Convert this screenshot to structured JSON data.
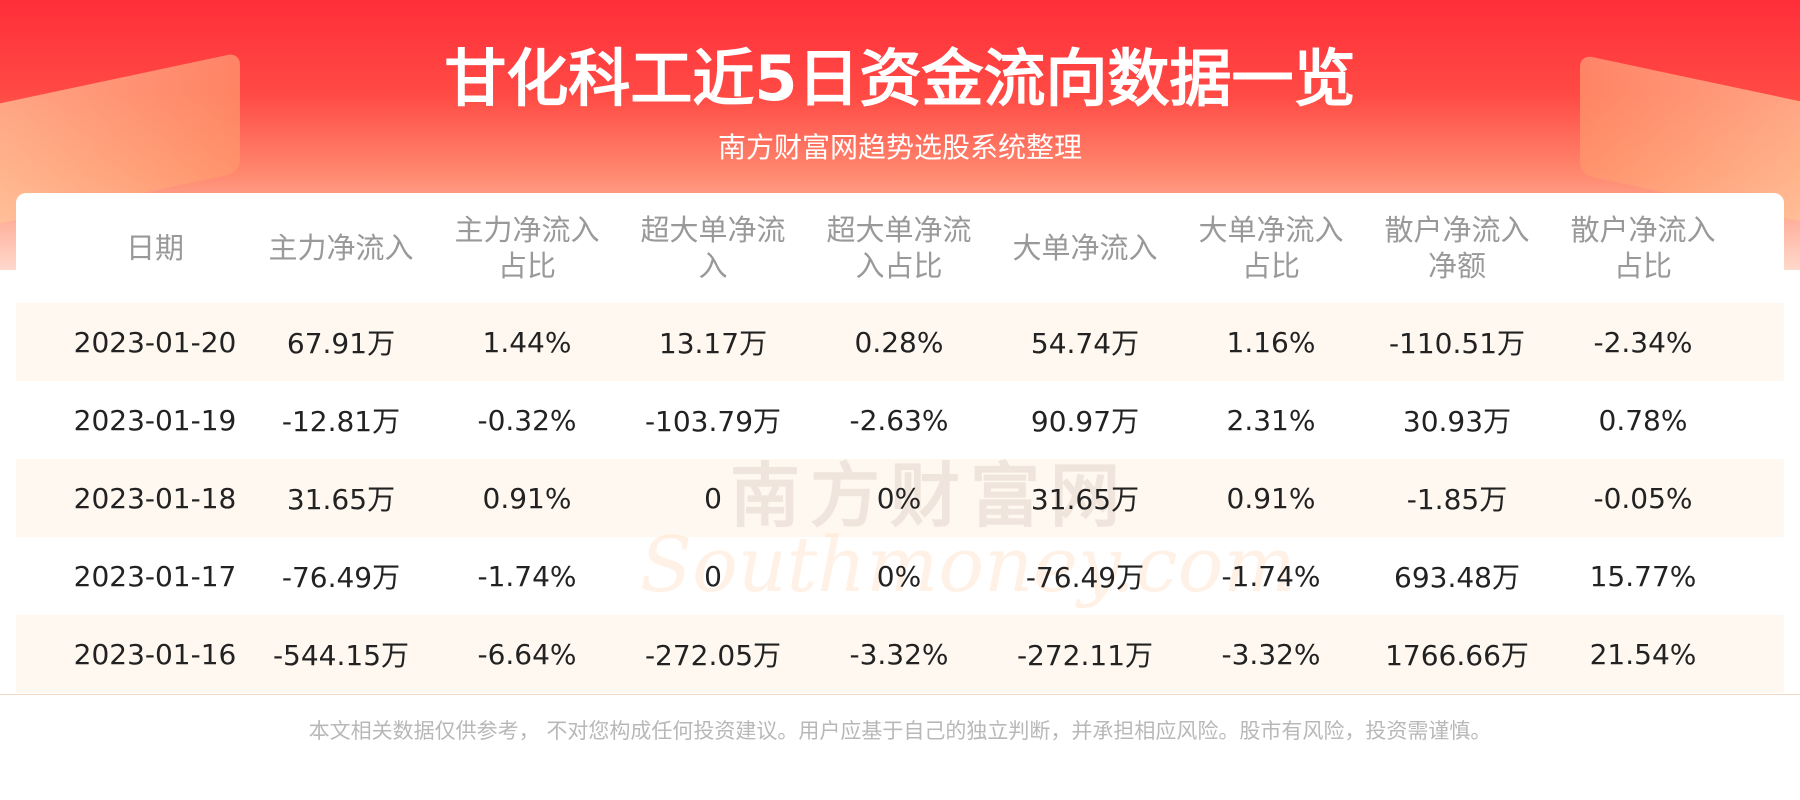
{
  "header": {
    "title": "甘化科工近5日资金流向数据一览",
    "subtitle": "南方财富网趋势选股系统整理"
  },
  "table": {
    "columns": [
      "日期",
      "主力净流入",
      "主力净流入占比",
      "超大单净流入",
      "超大单净流入占比",
      "大单净流入",
      "大单净流入占比",
      "散户净流入净额",
      "散户净流入占比"
    ],
    "rows": [
      [
        "2023-01-20",
        "67.91万",
        "1.44%",
        "13.17万",
        "0.28%",
        "54.74万",
        "1.16%",
        "-110.51万",
        "-2.34%"
      ],
      [
        "2023-01-19",
        "-12.81万",
        "-0.32%",
        "-103.79万",
        "-2.63%",
        "90.97万",
        "2.31%",
        "30.93万",
        "0.78%"
      ],
      [
        "2023-01-18",
        "31.65万",
        "0.91%",
        "0",
        "0%",
        "31.65万",
        "0.91%",
        "-1.85万",
        "-0.05%"
      ],
      [
        "2023-01-17",
        "-76.49万",
        "-1.74%",
        "0",
        "0%",
        "-76.49万",
        "-1.74%",
        "693.48万",
        "15.77%"
      ],
      [
        "2023-01-16",
        "-544.15万",
        "-6.64%",
        "-272.05万",
        "-3.32%",
        "-272.11万",
        "-3.32%",
        "1766.66万",
        "21.54%"
      ]
    ]
  },
  "watermark": {
    "cn": "南方财富网",
    "en": "Southmoney.com"
  },
  "footer": {
    "disclaimer": "本文相关数据仅供参考， 不对您构成任何投资建议。用户应基于自己的独立判断，并承担相应风险。股市有风险，投资需谨慎。"
  }
}
